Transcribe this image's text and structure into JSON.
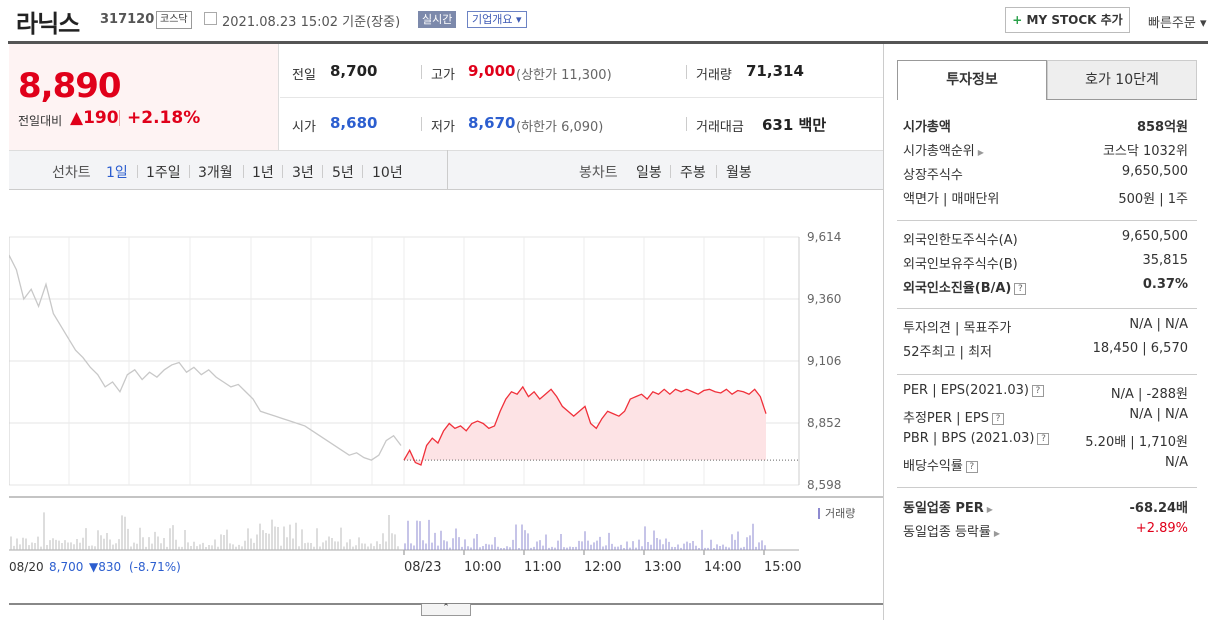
{
  "header": {
    "stock_name": "라닉스",
    "stock_code": "317120",
    "market": "코스닥",
    "as_of": "2021.08.23 15:02  기준(장중)",
    "realtime": "실시간",
    "company_overview": "기업개요 ▾",
    "mystock_plus": "+",
    "mystock": "MY STOCK 추가",
    "quick_order": "빠른주문 ▾"
  },
  "price": {
    "current": "8,890",
    "change_label": "전일대비",
    "change_amount": "▲190",
    "change_rate": "+2.18%"
  },
  "quote": {
    "prev_close_label": "전일",
    "prev_close": "8,700",
    "high_label": "고가",
    "high": "9,000",
    "upper_limit": "(상한가 11,300)",
    "volume_label": "거래량",
    "volume": "71,314",
    "open_label": "시가",
    "open": "8,680",
    "low_label": "저가",
    "low": "8,670",
    "lower_limit": "(하한가 6,090)",
    "amount_label": "거래대금",
    "amount": "631",
    "amount_unit": "백만"
  },
  "period_tabs": {
    "line_chart": "선차트",
    "items": [
      "1일",
      "1주일",
      "3개월",
      "1년",
      "3년",
      "5년",
      "10년"
    ],
    "active": 0,
    "candle_chart": "봉차트",
    "candle_items": [
      "일봉",
      "주봉",
      "월봉"
    ]
  },
  "colors": {
    "up": "#e0001a",
    "down": "#2c5ecf",
    "accent": "#2c5ecf"
  },
  "chart_data": {
    "type": "line",
    "y_ticks": [
      "9,614",
      "9,360",
      "9,106",
      "8,852",
      "8,598"
    ],
    "ylim": [
      8598,
      9614
    ],
    "prev_close": 8700,
    "volume_label": "거래량",
    "x_ticks": [
      "08/20",
      "08/23",
      "10:00",
      "11:00",
      "12:00",
      "13:00",
      "14:00",
      "15:00"
    ],
    "prev_day_summary": {
      "date": "08/20",
      "price": "8,700",
      "change": "▼830",
      "rate": "(-8.71%)"
    },
    "prev_day_series": [
      9540,
      9480,
      9360,
      9400,
      9330,
      9420,
      9300,
      9250,
      9200,
      9150,
      9120,
      9080,
      9050,
      9000,
      9020,
      8980,
      9050,
      9070,
      9030,
      9060,
      9040,
      9070,
      9090,
      9100,
      9060,
      9080,
      9050,
      9070,
      9040,
      9020,
      9000,
      9010,
      8980,
      8950,
      8900,
      8890,
      8880,
      8870,
      8860,
      8850,
      8840,
      8820,
      8800,
      8780,
      8760,
      8740,
      8720,
      8730,
      8710,
      8700,
      8720,
      8780,
      8800,
      8760
    ],
    "today_series": [
      8700,
      8740,
      8690,
      8680,
      8760,
      8790,
      8770,
      8820,
      8850,
      8830,
      8840,
      8820,
      8850,
      8860,
      8850,
      8830,
      8840,
      8900,
      8950,
      8980,
      8970,
      9000,
      8960,
      8980,
      8950,
      8970,
      8990,
      8960,
      8920,
      8900,
      8880,
      8900,
      8920,
      8850,
      8830,
      8870,
      8900,
      8890,
      8880,
      8900,
      8950,
      8960,
      8970,
      8950,
      8980,
      8970,
      8990,
      8970,
      8990,
      8980,
      8990,
      8980,
      8970,
      8985,
      8990,
      8980,
      8975,
      8990,
      8970,
      8985,
      8980,
      8970,
      8990,
      8960,
      8890
    ]
  },
  "right_panel": {
    "tab_invest": "투자정보",
    "tab_hoga": "호가 10단계",
    "group1": [
      {
        "label": "시가총액",
        "value": "858억원",
        "bold": true
      },
      {
        "label": "시가총액순위",
        "value": "코스닥 1032위",
        "arrow": true
      },
      {
        "label": "상장주식수",
        "value": "9,650,500"
      },
      {
        "label": "액면가 | 매매단위",
        "value": "500원 | 1주"
      }
    ],
    "group2": [
      {
        "label": "외국인한도주식수(A)",
        "value": "9,650,500"
      },
      {
        "label": "외국인보유주식수(B)",
        "value": "35,815"
      },
      {
        "label": "외국인소진율(B/A)",
        "value": "0.37%",
        "bold": true,
        "help": "?"
      }
    ],
    "group3": [
      {
        "label": "투자의견 | 목표주가",
        "value": "N/A | N/A"
      },
      {
        "label": "52주최고 | 최저",
        "value": "18,450 | 6,570"
      }
    ],
    "group4": [
      {
        "label": "PER | EPS(2021.03)",
        "value": "N/A | -288원",
        "help": "?"
      },
      {
        "label": "추정PER | EPS",
        "value": "N/A | N/A",
        "help": "?"
      },
      {
        "label": "PBR | BPS (2021.03)",
        "value": "5.20배 | 1,710원",
        "help": "?"
      },
      {
        "label": "배당수익률",
        "value": "N/A",
        "help": "?"
      }
    ],
    "group5": [
      {
        "label": "동일업종 PER",
        "value": "-68.24배",
        "arrow": true,
        "bold": true
      },
      {
        "label": "동일업종 등락률",
        "value": "+2.89%",
        "arrow": true,
        "red": true
      }
    ]
  },
  "collapse": "⌃"
}
